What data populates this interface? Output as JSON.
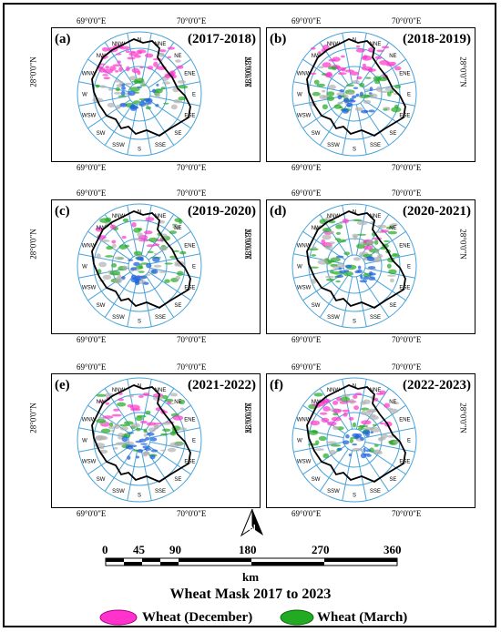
{
  "panels": [
    {
      "letter": "(a)",
      "years": "(2017-2018)"
    },
    {
      "letter": "(b)",
      "years": "(2018-2019)"
    },
    {
      "letter": "(c)",
      "years": "(2019-2020)"
    },
    {
      "letter": "(d)",
      "years": "(2020-2021)"
    },
    {
      "letter": "(e)",
      "years": "(2021-2022)"
    },
    {
      "letter": "(f)",
      "years": "(2022-2023)"
    }
  ],
  "coords": {
    "lon_left": "69°0'0\"E",
    "lon_right": "70°0'0\"E",
    "lat": "28°0'0\"N"
  },
  "directions": [
    "N",
    "NNE",
    "NE",
    "ENE",
    "E",
    "ESE",
    "SE",
    "SSE",
    "S",
    "SSW",
    "SW",
    "WSW",
    "W",
    "WNW",
    "NW",
    "NNW"
  ],
  "north_arrow": "N",
  "scale": {
    "ticks": [
      "0",
      "45",
      "90",
      "180",
      "270",
      "360"
    ],
    "unit": "km"
  },
  "title": "Wheat Mask 2017 to 2023",
  "legend": [
    {
      "label": "Wheat (December)",
      "color": "#ff33cc"
    },
    {
      "label": "Wheat (March)",
      "color": "#22aa22"
    }
  ],
  "colors": {
    "wind_rose": "#4aa3d9",
    "boundary": "#000000"
  }
}
